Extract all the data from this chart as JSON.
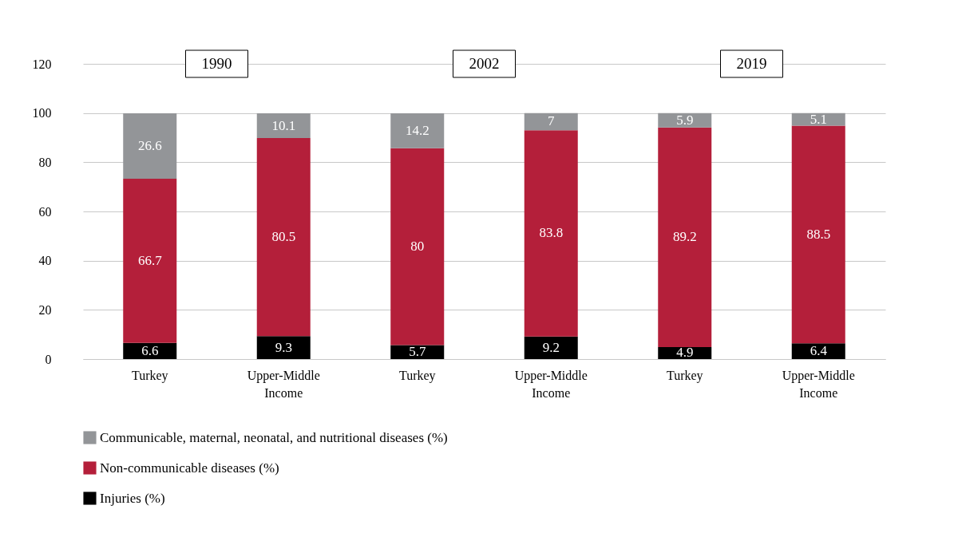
{
  "chart_data": {
    "type": "bar",
    "stacked": true,
    "categories": [
      "Turkey",
      "Upper-Middle Income",
      "Turkey",
      "Upper-Middle Income",
      "Turkey",
      "Upper-Middle Income"
    ],
    "series": [
      {
        "name": "Injuries (%)",
        "color": "#000000",
        "values": [
          6.6,
          9.3,
          5.7,
          9.2,
          4.9,
          6.4
        ]
      },
      {
        "name": "Non-communicable diseases (%)",
        "color": "#b41f3a",
        "values": [
          66.7,
          80.5,
          80,
          83.8,
          89.2,
          88.5
        ]
      },
      {
        "name": "Communicable, maternal, neonatal, and nutritional diseases (%)",
        "color": "#939598",
        "values": [
          26.6,
          10.1,
          14.2,
          7,
          5.9,
          5.1
        ]
      }
    ],
    "annotations": [
      "1990",
      "2002",
      "2019"
    ],
    "ylim": [
      0,
      120
    ],
    "yticks": [
      0,
      20,
      40,
      60,
      80,
      100,
      120
    ],
    "grid": "y",
    "legend": "bottom",
    "data_labels": true
  }
}
